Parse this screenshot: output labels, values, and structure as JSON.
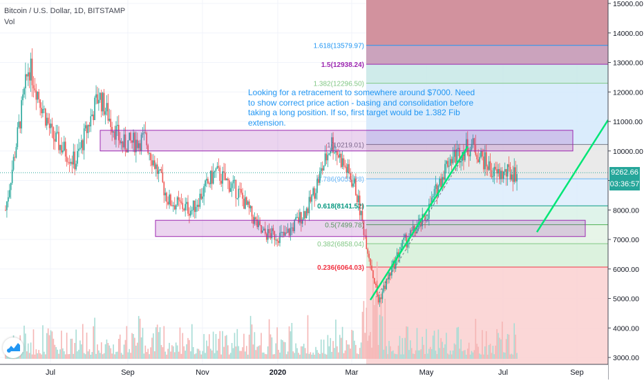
{
  "header": {
    "title": "Bitcoin / U.S. Dollar, 1D, BITSTAMP",
    "volume_label": "Vol"
  },
  "annotation": {
    "text": "Looking for a retracement to somewhere around $7000. Need to show correct price action - basing and consolidation before taking a long position. If so, first target would be 1.382 Fib extension."
  },
  "price_labels": {
    "last_price": "9262.66",
    "countdown": "03:36:57"
  },
  "chart_data": {
    "type": "candlestick",
    "symbol": "BTCUSD",
    "interval": "1D",
    "exchange": "BITSTAMP",
    "x_axis": {
      "tick_labels": [
        "Jul",
        "Sep",
        "Nov",
        "2020",
        "Mar",
        "May",
        "Jul",
        "Sep"
      ]
    },
    "y_axis": {
      "range": [
        2850,
        15100
      ],
      "tick_values": [
        3000,
        4000,
        5000,
        6000,
        7000,
        8000,
        9000,
        10000,
        11000,
        12000,
        13000,
        14000,
        15000
      ],
      "tick_labels": [
        "3000.00",
        "4000.00",
        "5000.00",
        "6000.00",
        "7000.00",
        "8000.00",
        "9000.00",
        "10000.00",
        "11000.00",
        "12000.00",
        "13000.00",
        "14000.00",
        "15000.00"
      ]
    },
    "last_price": 9262.66,
    "price_path": [
      {
        "x": "Jun 2019",
        "y": 8000
      },
      {
        "x": "late Jun 2019",
        "y": 12900
      },
      {
        "x": "early Jul 2019",
        "y": 10500
      },
      {
        "x": "mid Jul 2019",
        "y": 9600
      },
      {
        "x": "early Aug 2019",
        "y": 11900
      },
      {
        "x": "late Aug 2019",
        "y": 10200
      },
      {
        "x": "early Sep 2019",
        "y": 10400
      },
      {
        "x": "late Sep 2019",
        "y": 8300
      },
      {
        "x": "mid Oct 2019",
        "y": 8000
      },
      {
        "x": "late Oct 2019",
        "y": 9300
      },
      {
        "x": "mid Nov 2019",
        "y": 8600
      },
      {
        "x": "late Nov 2019",
        "y": 7200
      },
      {
        "x": "mid Dec 2019",
        "y": 7100
      },
      {
        "x": "Jan 2020",
        "y": 8100
      },
      {
        "x": "mid Feb 2020",
        "y": 10300
      },
      {
        "x": "early Mar 2020",
        "y": 8800
      },
      {
        "x": "mid Mar 2020",
        "y": 4900
      },
      {
        "x": "early Apr 2020",
        "y": 6800
      },
      {
        "x": "late Apr 2020",
        "y": 7700
      },
      {
        "x": "early May 2020",
        "y": 9700
      },
      {
        "x": "early Jun 2020",
        "y": 10200
      },
      {
        "x": "late Jun 2020",
        "y": 9200
      },
      {
        "x": "Jul 2020",
        "y": 9262.66
      }
    ],
    "fibonacci_levels": [
      {
        "label": "0.236(6064.03)",
        "ratio": 0.236,
        "price": 6064.03,
        "color": "#f23645"
      },
      {
        "label": "0.382(6858.04)",
        "ratio": 0.382,
        "price": 6858.04,
        "color": "#81c784"
      },
      {
        "label": "0.5(7499.78)",
        "ratio": 0.5,
        "price": 7499.78,
        "color": "#4caf50"
      },
      {
        "label": "0.618(8141.52)",
        "ratio": 0.618,
        "price": 8141.52,
        "color": "#089981"
      },
      {
        "label": "0.786(9055.28)",
        "ratio": 0.786,
        "price": 9055.28,
        "color": "#64b5f6"
      },
      {
        "label": "1(10219.01)",
        "ratio": 1,
        "price": 10219.01,
        "color": "#787b86"
      },
      {
        "label": "1.382(12296.50)",
        "ratio": 1.382,
        "price": 12296.5,
        "color": "#81c784"
      },
      {
        "label": "1.5(12938.24)",
        "ratio": 1.5,
        "price": 12938.24,
        "color": "#9c27b0"
      },
      {
        "label": "1.618(13579.97)",
        "ratio": 1.618,
        "price": 13579.97,
        "color": "#2196f3"
      }
    ],
    "zones": [
      {
        "name": "resistance zone",
        "from": 10000,
        "to": 10700,
        "color": "#9c27b0"
      },
      {
        "name": "support zone",
        "from": 7100,
        "to": 7650,
        "color": "#9c27b0"
      }
    ],
    "trendlines": [
      {
        "name": "uptrend",
        "from": {
          "x": "mid Mar 2020",
          "y": 4950
        },
        "to": {
          "x": "early Jun 2020",
          "y": 10150
        },
        "color": "#00e676"
      },
      {
        "name": "projection",
        "from": {
          "x": "late Jul 2020",
          "y": 7250
        },
        "to": {
          "x": "mid Sep 2020",
          "y": 11050
        },
        "color": "#00e676"
      }
    ],
    "colors": {
      "up": "#26a69a",
      "down": "#ef5350",
      "accent": "#2196f3",
      "last_price_tag": "#26a69a",
      "countdown_tag": "#26a69a"
    },
    "grid": true,
    "legend": "none"
  }
}
